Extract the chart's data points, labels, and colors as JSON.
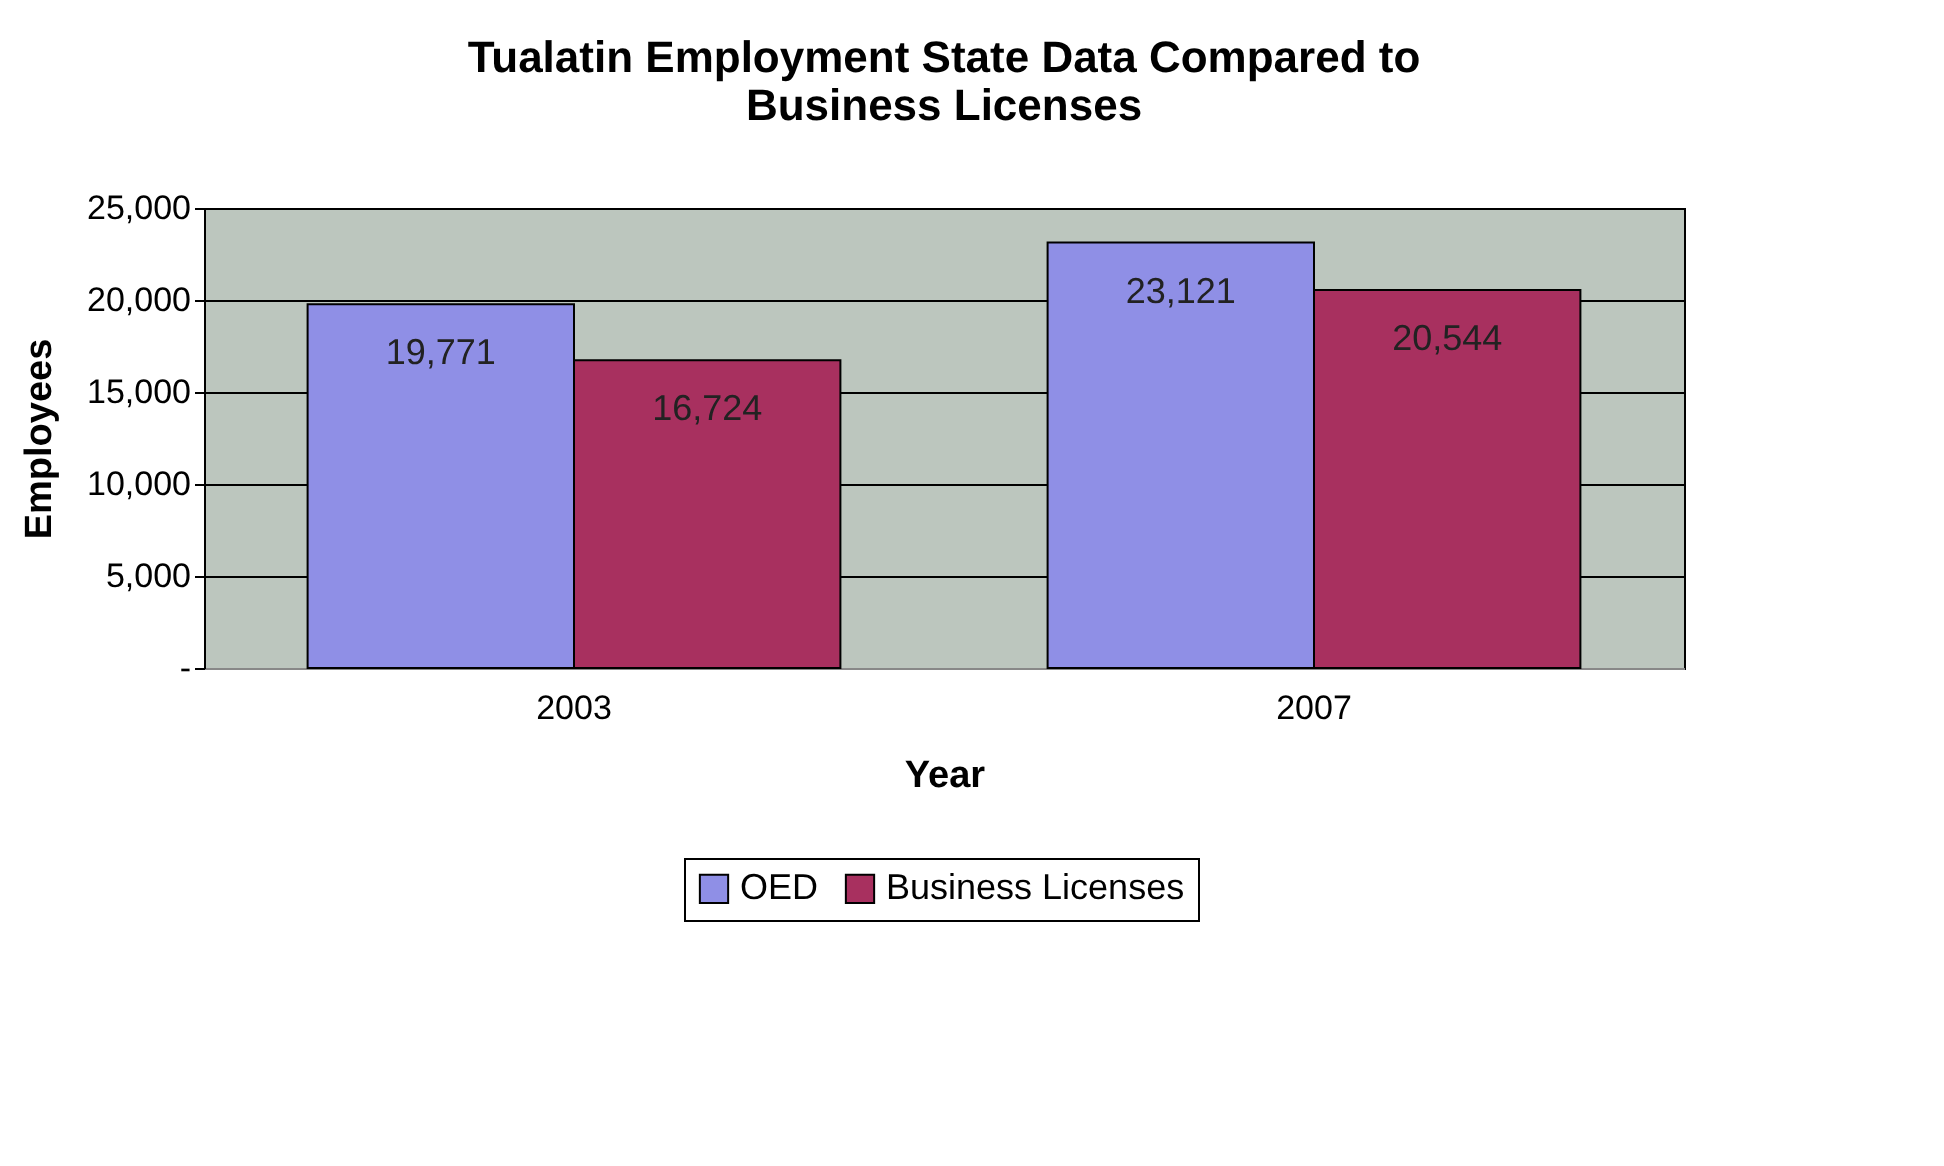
{
  "chart_data": {
    "type": "bar",
    "title": "Tualatin Employment State Data Compared to Business Licenses",
    "xlabel": "Year",
    "ylabel": "Employees",
    "categories": [
      "2003",
      "2007"
    ],
    "series": [
      {
        "name": "OED",
        "color": "#8f8fe6",
        "values": [
          19771,
          23121
        ],
        "value_labels": [
          "19,771",
          "23,121"
        ]
      },
      {
        "name": "Business Licenses",
        "color": "#a8305f",
        "values": [
          16724,
          20544
        ],
        "value_labels": [
          "16,724",
          "20,544"
        ]
      }
    ],
    "ylim": [
      0,
      25000
    ],
    "yticks": [
      {
        "value": 0,
        "label": "-"
      },
      {
        "value": 5000,
        "label": "5,000"
      },
      {
        "value": 10000,
        "label": "10,000"
      },
      {
        "value": 15000,
        "label": "15,000"
      },
      {
        "value": 20000,
        "label": "20,000"
      },
      {
        "value": 25000,
        "label": "25,000"
      }
    ],
    "grid": "y",
    "legend": "bottom"
  }
}
